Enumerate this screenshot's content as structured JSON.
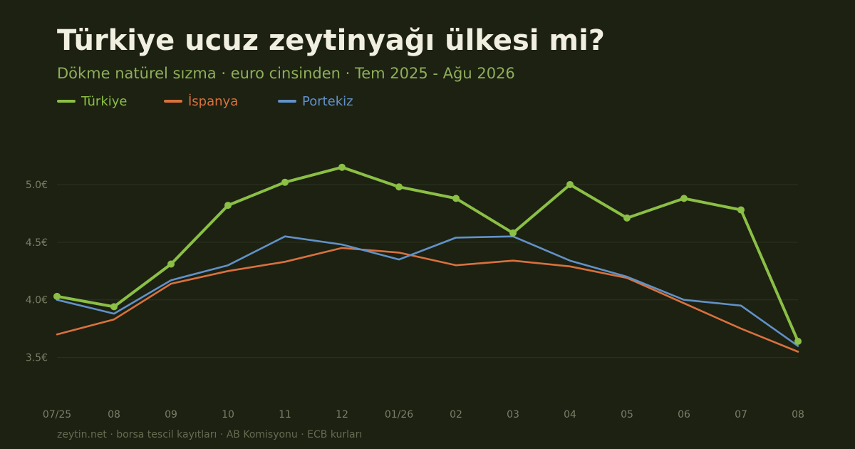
{
  "title": "Türkiye ucuz zeytinyağı ülkesi mi?",
  "subtitle": "Dökme natürel sızma · euro cinsinden · Tem 2025 - Ağu 2026",
  "footer": "zeytin.net · borsa tescil kayıtları · AB Komisyonu · ECB kurları",
  "chart_data": {
    "type": "line",
    "categories": [
      "07/25",
      "08",
      "09",
      "10",
      "11",
      "12",
      "01/26",
      "02",
      "03",
      "04",
      "05",
      "06",
      "07",
      "08"
    ],
    "ylim": [
      3.25,
      5.55
    ],
    "yticks": [
      {
        "value": 3.5,
        "label": "3.5€"
      },
      {
        "value": 4.0,
        "label": "4.0€"
      },
      {
        "value": 4.5,
        "label": "4.5€"
      },
      {
        "value": 5.0,
        "label": "5.0€"
      }
    ],
    "grid": true,
    "legend_position": "top-left",
    "series": [
      {
        "name": "Türkiye",
        "color": "#8bbf45",
        "markers": true,
        "emphasis": true,
        "values": [
          4.03,
          3.94,
          4.31,
          4.82,
          5.02,
          5.15,
          4.98,
          4.88,
          4.58,
          5.0,
          4.71,
          4.88,
          4.78,
          3.64
        ]
      },
      {
        "name": "İspanya",
        "color": "#d9713e",
        "markers": false,
        "emphasis": false,
        "values": [
          3.7,
          3.83,
          4.14,
          4.25,
          4.33,
          4.45,
          4.41,
          4.3,
          4.34,
          4.29,
          4.19,
          3.97,
          3.75,
          3.55
        ]
      },
      {
        "name": "Portekiz",
        "color": "#6291c8",
        "markers": false,
        "emphasis": false,
        "values": [
          4.0,
          3.88,
          4.17,
          4.3,
          4.55,
          4.48,
          4.35,
          4.54,
          4.55,
          4.34,
          4.2,
          4.0,
          3.95,
          3.6
        ]
      }
    ]
  }
}
